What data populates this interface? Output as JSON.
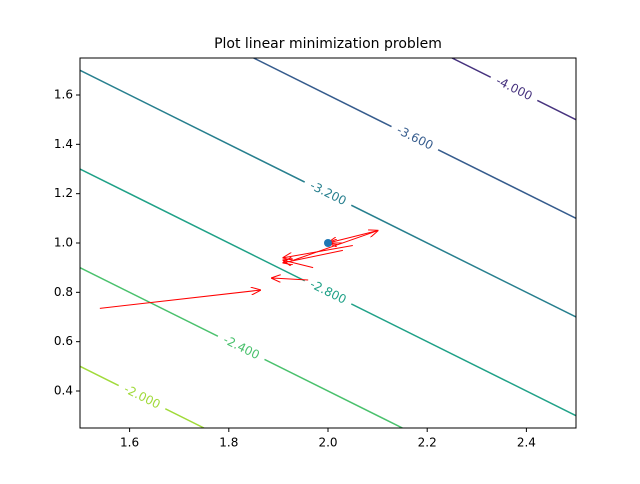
{
  "chart_data": {
    "type": "contour",
    "title": "Plot linear minimization problem",
    "xlim": [
      1.5,
      2.5
    ],
    "ylim": [
      0.25,
      1.75
    ],
    "xticks": [
      1.6,
      1.8,
      {
        "value": 2,
        "label": "2.0"
      },
      2.2,
      2.4
    ],
    "yticks": [
      0.4,
      0.6,
      0.8,
      {
        "value": 1,
        "label": "1.0"
      },
      1.2,
      1.4,
      1.6
    ],
    "levels": [
      {
        "value": -4,
        "label": "-4.000",
        "color": "#46327e"
      },
      {
        "value": -3.6,
        "label": "-3.600",
        "color": "#365c8d"
      },
      {
        "value": -3.2,
        "label": "-3.200",
        "color": "#277f8e"
      },
      {
        "value": -2.8,
        "label": "-2.800",
        "color": "#1fa187"
      },
      {
        "value": -2.4,
        "label": "-2.400",
        "color": "#4ac16d"
      },
      {
        "value": -2,
        "label": "-2.000",
        "color": "#a0da39"
      }
    ],
    "point": {
      "x": 2,
      "y": 1,
      "color": "#1f77b4"
    },
    "arrow_color": "#ff0000",
    "arrows": [
      {
        "x": [
          1.54,
          1.863
        ],
        "y": [
          0.735,
          0.809
        ]
      },
      {
        "x": [
          1.96,
          1.887
        ],
        "y": [
          0.85,
          0.858
        ]
      },
      {
        "x": [
          1.97,
          1.91
        ],
        "y": [
          0.9,
          0.93
        ]
      },
      {
        "x": [
          2.03,
          1.91
        ],
        "y": [
          0.97,
          0.92
        ]
      },
      {
        "x": [
          1.93,
          2.1
        ],
        "y": [
          0.93,
          1.05
        ]
      },
      {
        "x": [
          2.1,
          2.0
        ],
        "y": [
          1.05,
          1.0
        ]
      },
      {
        "x": [
          2.05,
          1.91
        ],
        "y": [
          0.99,
          0.94
        ]
      },
      {
        "x": [
          2.03,
          2.0
        ],
        "y": [
          1.0,
          1.0
        ]
      }
    ]
  }
}
